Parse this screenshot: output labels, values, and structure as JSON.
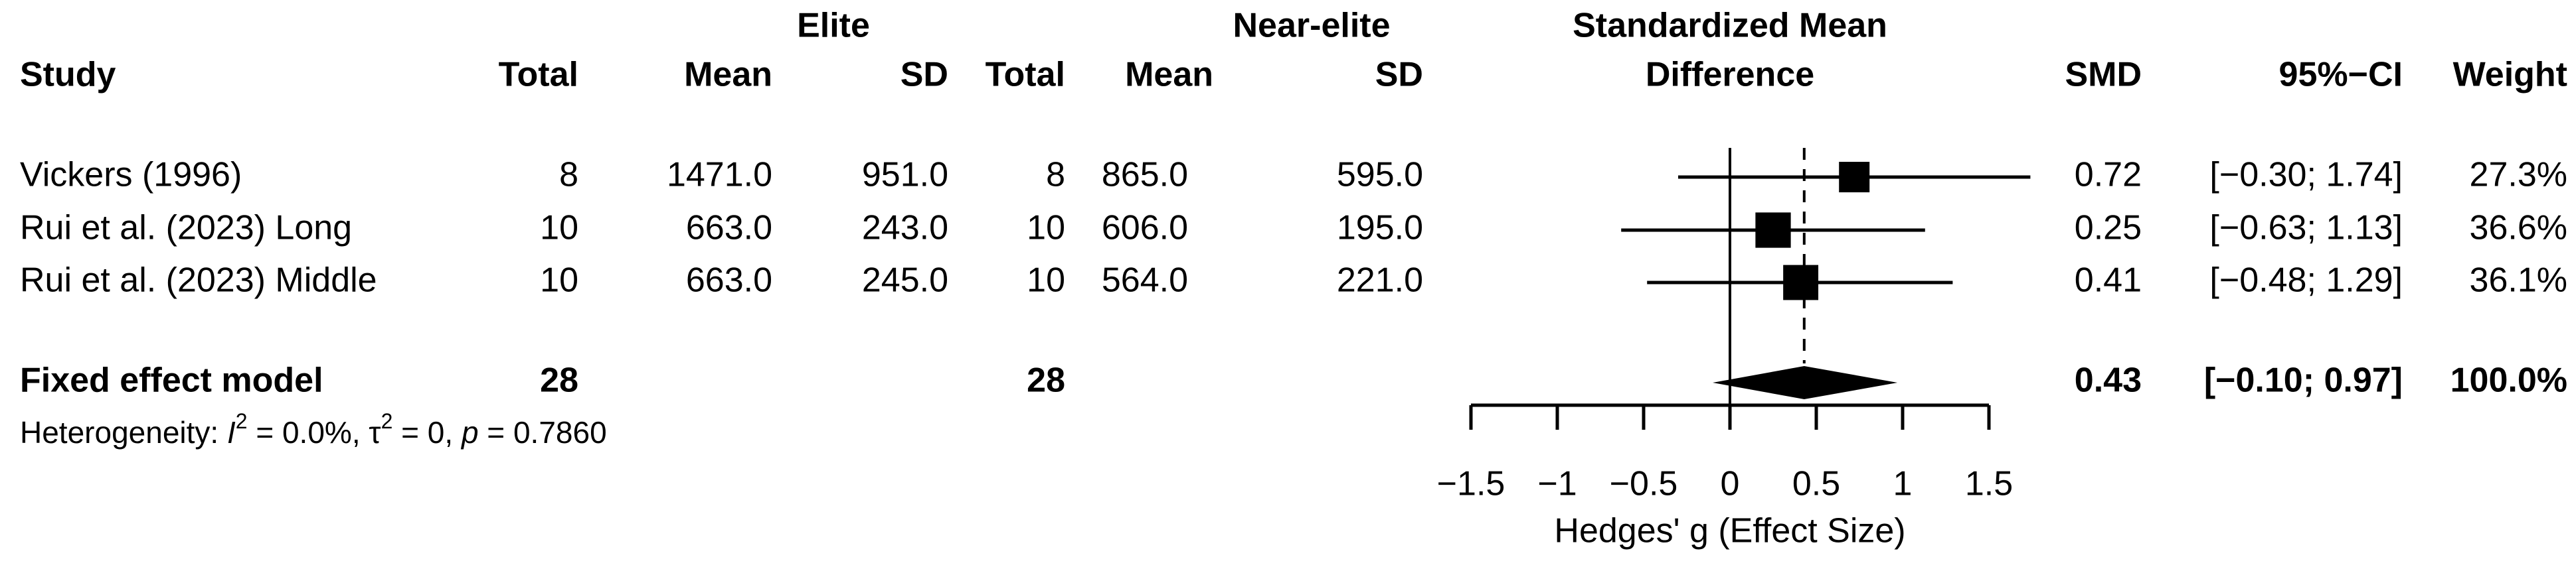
{
  "chart_data": {
    "type": "forest",
    "group_headers": [
      "Elite",
      "Near-elite"
    ],
    "plot_header": [
      "Standardized Mean",
      "Difference"
    ],
    "columns": [
      "Study",
      "Total",
      "Mean",
      "SD",
      "Total",
      "Mean",
      "SD",
      "SMD",
      "95%−CI",
      "Weight"
    ],
    "studies": [
      {
        "name": "Vickers (1996)",
        "e_total": 8,
        "e_mean": "1471.0",
        "e_sd": "951.0",
        "n_total": 8,
        "n_mean": "865.0",
        "n_sd": "595.0",
        "smd": 0.72,
        "ci": [
          -0.3,
          1.74
        ],
        "ci_label": "[−0.30; 1.74]",
        "weight": 27.3,
        "weight_label": "27.3%"
      },
      {
        "name": "Rui et al. (2023) Long",
        "e_total": 10,
        "e_mean": "663.0",
        "e_sd": "243.0",
        "n_total": 10,
        "n_mean": "606.0",
        "n_sd": "195.0",
        "smd": 0.25,
        "ci": [
          -0.63,
          1.13
        ],
        "ci_label": "[−0.63; 1.13]",
        "weight": 36.6,
        "weight_label": "36.6%"
      },
      {
        "name": "Rui et al. (2023) Middle",
        "e_total": 10,
        "e_mean": "663.0",
        "e_sd": "245.0",
        "n_total": 10,
        "n_mean": "564.0",
        "n_sd": "221.0",
        "smd": 0.41,
        "ci": [
          -0.48,
          1.29
        ],
        "ci_label": "[−0.48; 1.29]",
        "weight": 36.1,
        "weight_label": "36.1%"
      }
    ],
    "model": {
      "name": "Fixed effect model",
      "e_total": 28,
      "n_total": 28,
      "smd": 0.43,
      "ci": [
        -0.1,
        0.97
      ],
      "ci_label": "[−0.10; 0.97]",
      "weight": 100,
      "weight_label": "100.0%"
    },
    "heterogeneity": [
      "Heterogeneity: ",
      "I",
      "2",
      " = 0.0%, ",
      "τ",
      "2",
      " = 0, ",
      "p",
      " = 0.7860"
    ],
    "xlabel": "Hedges' g (Effect Size)",
    "xlim": [
      -1.5,
      1.5
    ],
    "xticks": [
      {
        "value": -1.5,
        "label": "−1.5"
      },
      {
        "value": -1,
        "label": "−1"
      },
      {
        "value": -0.5,
        "label": "−0.5"
      },
      0,
      0.5,
      1,
      1.5
    ],
    "color": "#000000"
  }
}
